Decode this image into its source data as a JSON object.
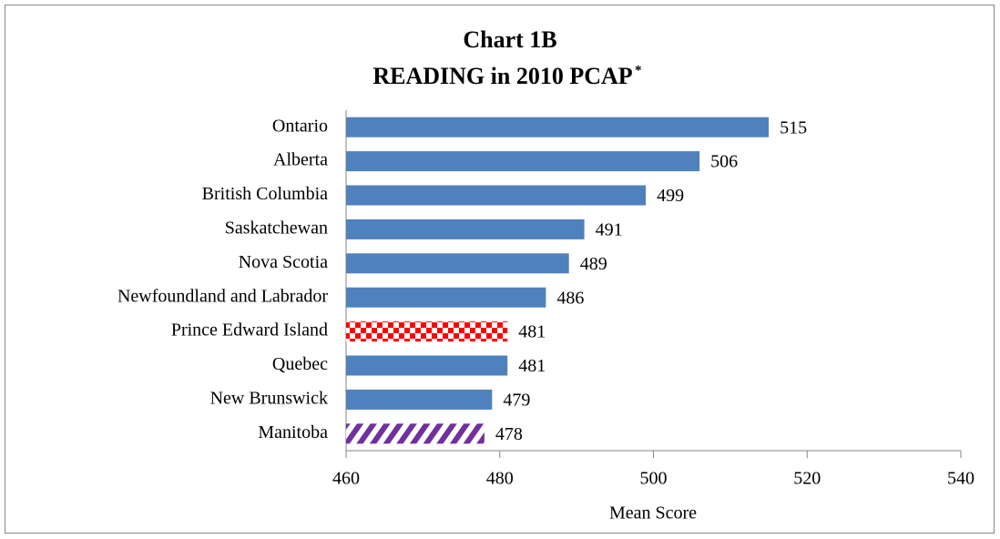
{
  "chart_data": {
    "type": "hbar",
    "title": "Chart 1B",
    "subtitle": "READING in 2010 PCAP",
    "subtitle_note": "*",
    "x_label": "Mean Score",
    "categories": [
      "Ontario",
      "Alberta",
      "British Columbia",
      "Saskatchewan",
      "Nova Scotia",
      "Newfoundland and Labrador",
      "Prince Edward Island",
      "Quebec",
      "New Brunswick",
      "Manitoba"
    ],
    "values": [
      515,
      506,
      499,
      491,
      489,
      486,
      481,
      481,
      479,
      478
    ],
    "colors": [
      "#4f81bd",
      "#4f81bd",
      "#4f81bd",
      "#4f81bd",
      "#4f81bd",
      "#4f81bd",
      "#ff0000",
      "#4f81bd",
      "#4f81bd",
      "#7030a0"
    ],
    "patterns": [
      "solid",
      "solid",
      "solid",
      "solid",
      "solid",
      "solid",
      "checker",
      "solid",
      "solid",
      "stripes"
    ],
    "xlim": [
      460,
      540
    ],
    "xticks": [
      460,
      480,
      500,
      520,
      540
    ],
    "grid": false
  }
}
